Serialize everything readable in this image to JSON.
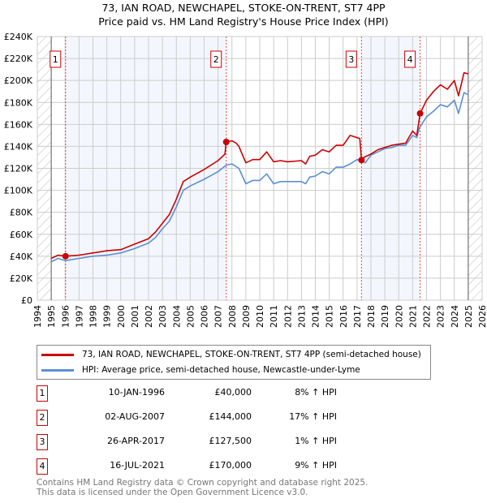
{
  "chart_data": {
    "type": "line",
    "title": "73, IAN ROAD, NEWCHAPEL, STOKE-ON-TRENT, ST7 4PP",
    "subtitle": "Price paid vs. HM Land Registry's House Price Index (HPI)",
    "xlim": [
      1994,
      2026
    ],
    "ylim": [
      0,
      240000
    ],
    "x_ticks": [
      "1994",
      "1995",
      "1996",
      "1997",
      "1998",
      "1999",
      "2000",
      "2001",
      "2002",
      "2003",
      "2004",
      "2005",
      "2006",
      "2007",
      "2008",
      "2009",
      "2010",
      "2011",
      "2012",
      "2013",
      "2014",
      "2015",
      "2016",
      "2017",
      "2018",
      "2019",
      "2020",
      "2021",
      "2022",
      "2023",
      "2024",
      "2025",
      "2026"
    ],
    "y_ticks": [
      {
        "v": 0,
        "label": "£0"
      },
      {
        "v": 20000,
        "label": "£20K"
      },
      {
        "v": 40000,
        "label": "£40K"
      },
      {
        "v": 60000,
        "label": "£60K"
      },
      {
        "v": 80000,
        "label": "£80K"
      },
      {
        "v": 100000,
        "label": "£100K"
      },
      {
        "v": 120000,
        "label": "£120K"
      },
      {
        "v": 140000,
        "label": "£140K"
      },
      {
        "v": 160000,
        "label": "£160K"
      },
      {
        "v": 180000,
        "label": "£180K"
      },
      {
        "v": 200000,
        "label": "£200K"
      },
      {
        "v": 220000,
        "label": "£220K"
      },
      {
        "v": 240000,
        "label": "£240K"
      }
    ],
    "grid": true,
    "data_range": [
      1995,
      2025
    ],
    "series": [
      {
        "name": "73, IAN ROAD, NEWCHAPEL, STOKE-ON-TRENT, ST7 4PP (semi-detached house)",
        "color": "#cc0000",
        "x": [
          1995,
          1995.5,
          1996,
          1997,
          1998,
          1999,
          2000,
          2001,
          2002,
          2002.5,
          2003,
          2003.5,
          2004,
          2004.5,
          2005,
          2006,
          2007,
          2007.5,
          2007.59,
          2008,
          2008.3,
          2008.5,
          2009,
          2009.5,
          2010,
          2010.5,
          2011,
          2011.5,
          2012,
          2013,
          2013.3,
          2013.6,
          2014,
          2014.5,
          2015,
          2015.5,
          2016,
          2016.5,
          2017,
          2017.2,
          2017.32,
          2017.5,
          2018,
          2018.5,
          2019,
          2019.5,
          2020,
          2020.5,
          2021,
          2021.3,
          2021.54,
          2022,
          2022.5,
          2023,
          2023.5,
          2024,
          2024.3,
          2024.7,
          2025
        ],
        "y": [
          38000,
          41000,
          40000,
          41000,
          43000,
          45000,
          46000,
          51000,
          56000,
          62000,
          70000,
          78000,
          92000,
          108000,
          112000,
          119000,
          127000,
          133000,
          144000,
          145000,
          143000,
          140000,
          125000,
          128000,
          128000,
          135000,
          126000,
          127000,
          126000,
          127000,
          124000,
          131000,
          132000,
          137000,
          135000,
          141000,
          141000,
          150000,
          148000,
          147000,
          127500,
          130000,
          133000,
          137000,
          139000,
          141000,
          142000,
          143000,
          154000,
          150000,
          170000,
          182000,
          190000,
          196000,
          192000,
          200000,
          186000,
          207000,
          206000
        ]
      },
      {
        "name": "HPI: Average price, semi-detached house, Newcastle-under-Lyme",
        "color": "#5b8fd6",
        "x": [
          1995,
          1995.5,
          1996,
          1997,
          1998,
          1999,
          2000,
          2001,
          2002,
          2002.5,
          2003,
          2003.5,
          2004,
          2004.5,
          2005,
          2006,
          2007,
          2007.6,
          2008,
          2008.5,
          2009,
          2009.5,
          2010,
          2010.5,
          2011,
          2011.5,
          2012,
          2013,
          2013.3,
          2013.6,
          2014,
          2014.5,
          2015,
          2015.5,
          2016,
          2016.5,
          2017,
          2017.3,
          2017.6,
          2018,
          2018.5,
          2019,
          2019.5,
          2020,
          2020.5,
          2021,
          2021.3,
          2021.5,
          2022,
          2022.5,
          2023,
          2023.5,
          2024,
          2024.3,
          2024.7,
          2025
        ],
        "y": [
          35000,
          38000,
          36000,
          38000,
          40000,
          41000,
          43000,
          47000,
          52000,
          57000,
          65000,
          72000,
          85000,
          100000,
          104000,
          110000,
          117000,
          123000,
          124000,
          120000,
          106000,
          109000,
          109000,
          115000,
          106000,
          108000,
          108000,
          108000,
          106000,
          112000,
          113000,
          117000,
          115000,
          121000,
          121000,
          124000,
          128000,
          127000,
          125000,
          132000,
          135000,
          138000,
          139000,
          141000,
          141000,
          150000,
          148000,
          157000,
          167000,
          172000,
          178000,
          176000,
          182000,
          170000,
          189000,
          187000
        ]
      }
    ],
    "sales": [
      {
        "n": "1",
        "x": 1996.03,
        "price": 40000
      },
      {
        "n": "2",
        "x": 2007.59,
        "price": 144000
      },
      {
        "n": "3",
        "x": 2017.32,
        "price": 127500
      },
      {
        "n": "4",
        "x": 2021.54,
        "price": 170000
      }
    ]
  },
  "title_line1": "73, IAN ROAD, NEWCHAPEL, STOKE-ON-TRENT, ST7 4PP",
  "title_line2": "Price paid vs. HM Land Registry's House Price Index (HPI)",
  "legend": {
    "red": "73, IAN ROAD, NEWCHAPEL, STOKE-ON-TRENT, ST7 4PP (semi-detached house)",
    "blue": "HPI: Average price, semi-detached house, Newcastle-under-Lyme"
  },
  "table": [
    {
      "n": "1",
      "date": "10-JAN-1996",
      "price": "£40,000",
      "hpi": "8% ↑ HPI"
    },
    {
      "n": "2",
      "date": "02-AUG-2007",
      "price": "£144,000",
      "hpi": "17% ↑ HPI"
    },
    {
      "n": "3",
      "date": "26-APR-2017",
      "price": "£127,500",
      "hpi": "1% ↑ HPI"
    },
    {
      "n": "4",
      "date": "16-JUL-2021",
      "price": "£170,000",
      "hpi": "9% ↑ HPI"
    }
  ],
  "footer": {
    "line1": "Contains HM Land Registry data © Crown copyright and database right 2025.",
    "line2": "This data is licensed under the Open Government Licence v3.0."
  }
}
